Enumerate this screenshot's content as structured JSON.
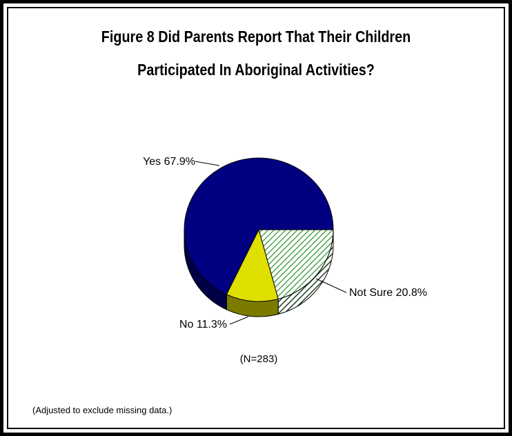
{
  "title_lines": [
    "Figure 8  Did Parents Report That Their Children",
    "Participated In Aboriginal Activities?"
  ],
  "sample_size_note": "(N=283)",
  "footnote": "(Adjusted to exclude missing data.)",
  "chart_data": {
    "type": "pie",
    "title": "Figure 8  Did Parents Report That Their Children Participated In Aboriginal Activities?",
    "slices": [
      {
        "category": "Yes",
        "value": 67.9,
        "label": "Yes 67.9%",
        "color": "#000080",
        "fill": "solid"
      },
      {
        "category": "Not Sure",
        "value": 20.8,
        "label": "Not Sure 20.8%",
        "color": "#008000",
        "fill": "diagonal-hatch"
      },
      {
        "category": "No",
        "value": 11.3,
        "label": "No 11.3%",
        "color": "#e0e000",
        "fill": "solid"
      }
    ],
    "style": "3d",
    "legend": "none"
  }
}
